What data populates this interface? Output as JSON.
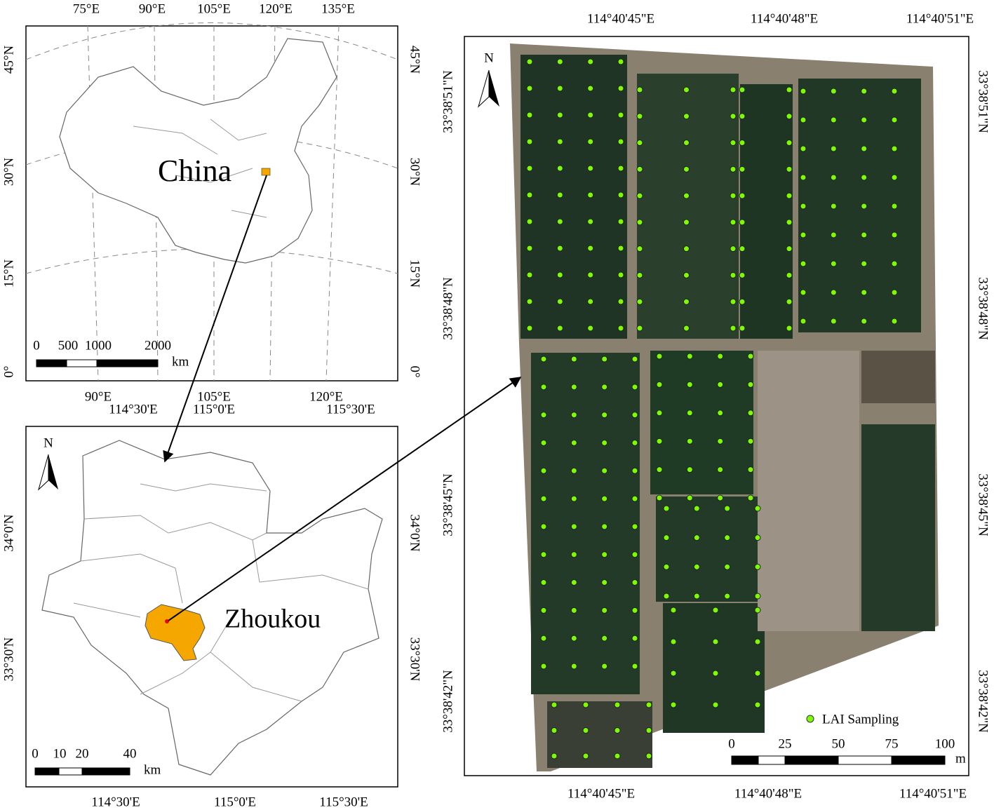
{
  "china_panel": {
    "label": "China",
    "top_ticks": [
      "75°E",
      "90°E",
      "105°E",
      "120°E",
      "135°E"
    ],
    "bottom_ticks": [
      "90°E",
      "105°E",
      "120°E"
    ],
    "left_ticks": [
      "45°N",
      "30°N",
      "15°N",
      "0°"
    ],
    "right_ticks": [
      "45°N",
      "30°N",
      "15°N",
      "0°"
    ],
    "scale_labels": [
      "0",
      "500",
      "1000",
      "2000"
    ],
    "scale_unit": "km"
  },
  "zhoukou_panel": {
    "label": "Zhoukou",
    "north": "N",
    "top_ticks": [
      "114°30'E",
      "115°0'E",
      "115°30'E"
    ],
    "bottom_ticks": [
      "114°30'E",
      "115°0'E",
      "115°30'E"
    ],
    "left_ticks": [
      "34°0'N",
      "33°30'N"
    ],
    "right_ticks": [
      "34°0'N",
      "33°30'N"
    ],
    "scale_labels": [
      "0",
      "10",
      "20",
      "40"
    ],
    "scale_unit": "km"
  },
  "field_panel": {
    "north": "N",
    "legend": "LAI Sampling",
    "top_ticks": [
      "114°40'45\"E",
      "114°40'48\"E",
      "114°40'51\"E"
    ],
    "bottom_ticks": [
      "114°40'45\"E",
      "114°40'48\"E",
      "114°40'51\"E"
    ],
    "left_ticks": [
      "33°38'51\"N",
      "33°38'48\"N",
      "33°38'45\"N",
      "33°38'42\"N"
    ],
    "right_ticks": [
      "33°38'51\"N",
      "33°38'48\"N",
      "33°38'45\"N",
      "33°38'42\"N"
    ],
    "scale_labels": [
      "0",
      "25",
      "50",
      "75",
      "100"
    ],
    "scale_unit": "m"
  }
}
